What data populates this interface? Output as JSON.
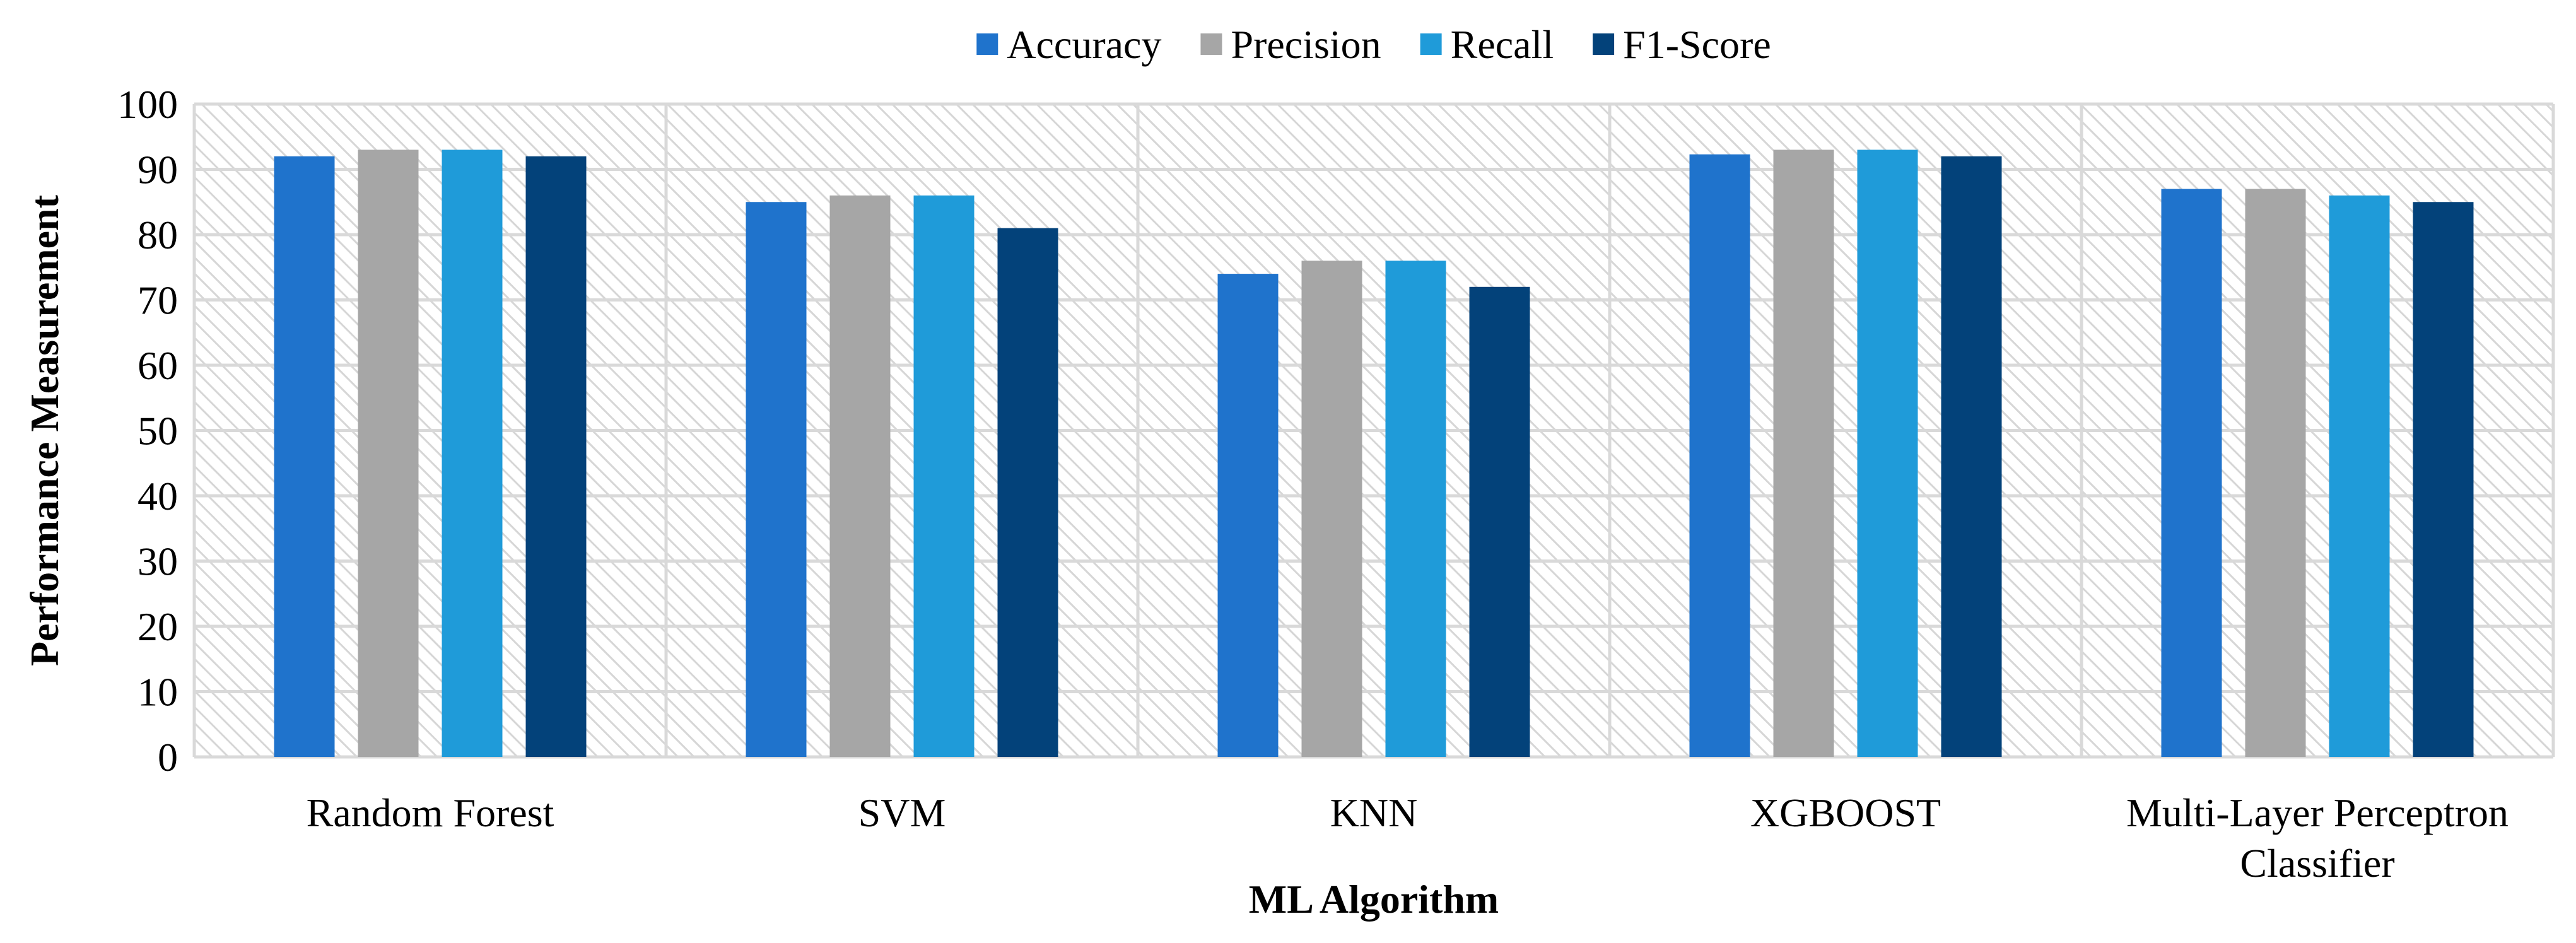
{
  "chart_data": {
    "type": "bar",
    "title": "",
    "xlabel": "ML Algorithm",
    "ylabel": "Performance Measurement",
    "ylim": [
      0,
      100
    ],
    "yticks": [
      0,
      10,
      20,
      30,
      40,
      50,
      60,
      70,
      80,
      90,
      100
    ],
    "grid": true,
    "legend_position": "top",
    "categories": [
      [
        "Random Forest"
      ],
      [
        "SVM"
      ],
      [
        "KNN"
      ],
      [
        "XGBOOST"
      ],
      [
        "Multi-Layer Perceptron",
        "Classifier"
      ]
    ],
    "series": [
      {
        "name": "Accuracy",
        "color": "#1F73CC",
        "values": [
          92,
          85,
          74,
          92.3,
          87
        ]
      },
      {
        "name": "Precision",
        "color": "#A6A6A6",
        "values": [
          93,
          86,
          76,
          93,
          87
        ]
      },
      {
        "name": "Recall",
        "color": "#1F9BD9",
        "values": [
          93,
          86,
          76,
          93,
          86
        ]
      },
      {
        "name": "F1-Score",
        "color": "#03427A",
        "values": [
          92,
          81,
          72,
          92,
          85
        ]
      }
    ]
  }
}
